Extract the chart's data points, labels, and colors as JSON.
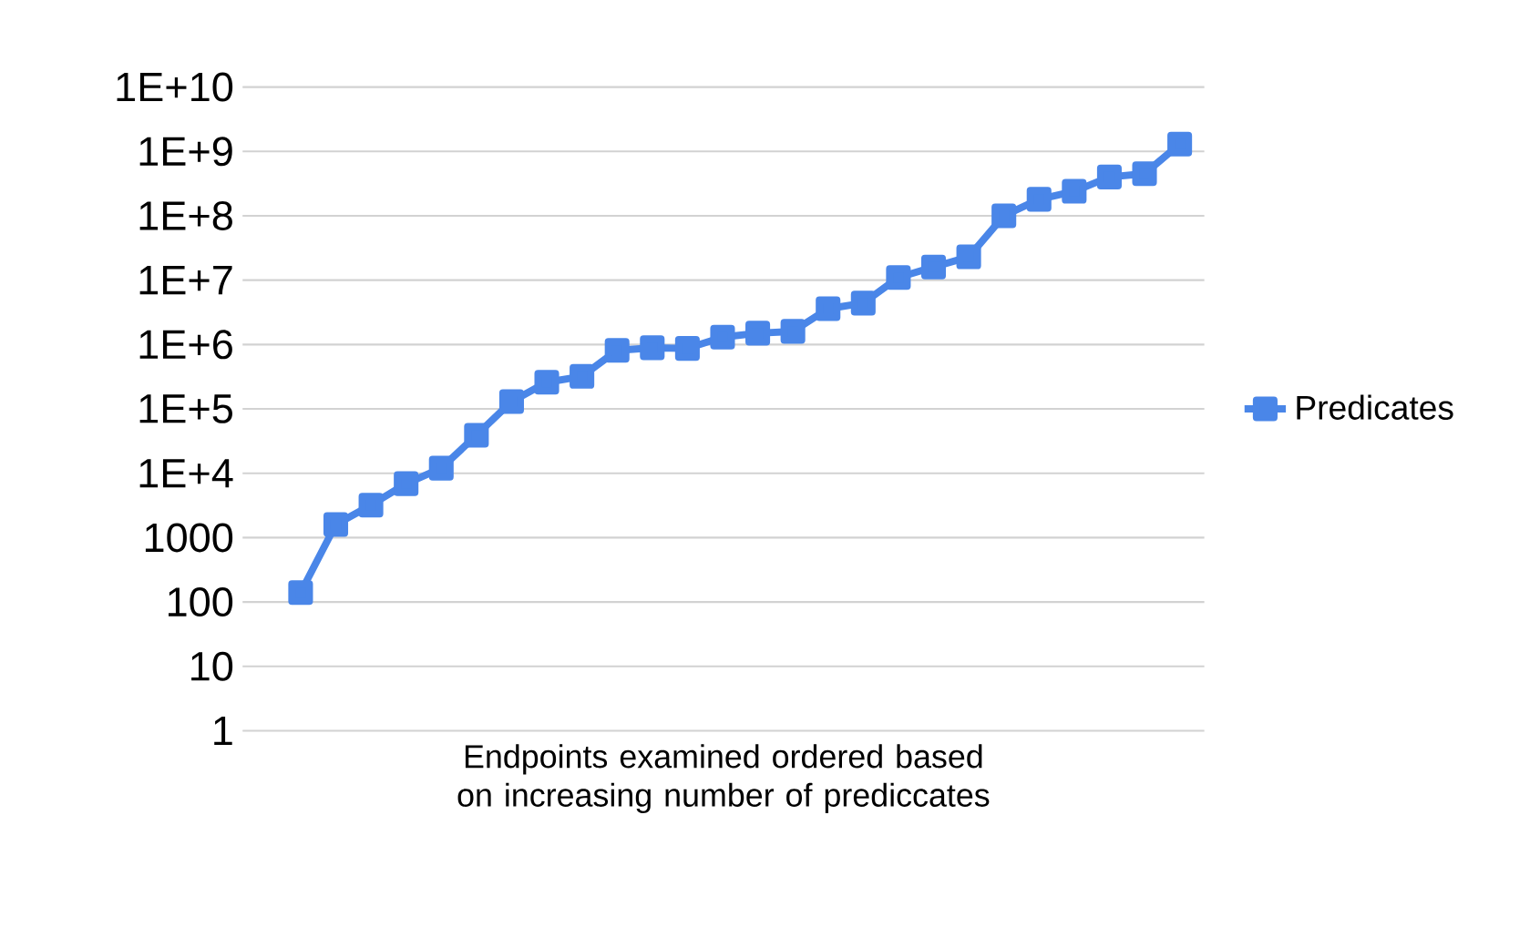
{
  "chart_data": {
    "type": "line",
    "xlabel": "Endpoints examined ordered based on increasing number of prediccates",
    "categories": [
      null,
      null,
      null,
      null,
      null,
      null,
      null,
      null,
      null,
      null,
      null,
      null,
      null,
      null,
      null,
      null,
      null,
      null,
      null,
      null,
      null,
      null,
      null,
      null,
      null,
      null
    ],
    "series": [
      {
        "name": "Predicates",
        "color": "#4a86e8",
        "values": [
          140,
          1600,
          3200,
          6900,
          12000,
          39000,
          130000,
          260000,
          320000,
          810000,
          890000,
          870000,
          1300000,
          1500000,
          1600000,
          3600000,
          4400000,
          11000000,
          16000000,
          23000000,
          100000000,
          180000000,
          240000000,
          400000000,
          450000000,
          1300000000
        ]
      }
    ],
    "log": "y",
    "ylim": [
      1,
      10000000000
    ],
    "yticks": [
      1,
      10,
      100,
      1000,
      {
        "value": 10000,
        "label": "1E+4"
      },
      {
        "value": 100000,
        "label": "1E+5"
      },
      {
        "value": 1000000,
        "label": "1E+6"
      },
      {
        "value": 10000000,
        "label": "1E+7"
      },
      {
        "value": 100000000,
        "label": "1E+8"
      },
      {
        "value": 1000000000,
        "label": "1E+9"
      },
      {
        "value": 10000000000,
        "label": "1E+10"
      }
    ],
    "grid": "y",
    "legend": "right",
    "marker": "square",
    "line_style": "solid"
  }
}
